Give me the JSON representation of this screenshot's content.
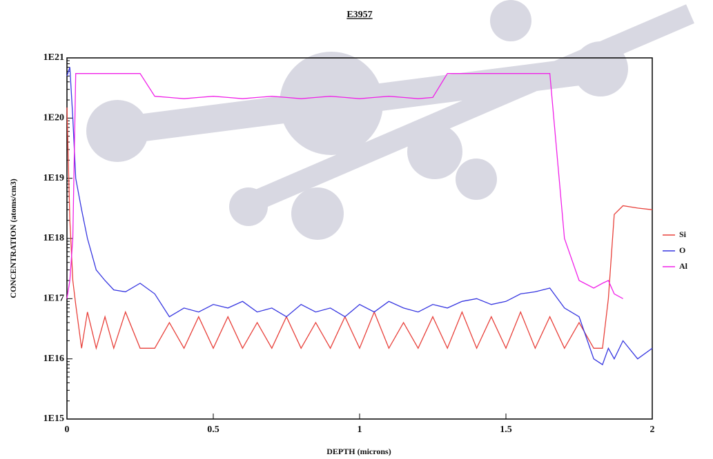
{
  "chart_data": {
    "type": "line",
    "title": "E3957",
    "x_label": "DEPTH (microns)",
    "y_label": "CONCENTRATION (atoms/cm3)",
    "yscale": "log",
    "legend": "right",
    "x": [
      0,
      0.01,
      0.02,
      0.03,
      0.05,
      0.07,
      0.1,
      0.13,
      0.16,
      0.2,
      0.25,
      0.3,
      0.35,
      0.4,
      0.45,
      0.5,
      0.55,
      0.6,
      0.65,
      0.7,
      0.75,
      0.8,
      0.85,
      0.9,
      0.95,
      1.0,
      1.05,
      1.1,
      1.15,
      1.2,
      1.25,
      1.3,
      1.35,
      1.4,
      1.45,
      1.5,
      1.55,
      1.6,
      1.65,
      1.7,
      1.75,
      1.8,
      1.83,
      1.85,
      1.87,
      1.9,
      1.95,
      2.0
    ],
    "series": [
      {
        "name": "Si",
        "color": "#e8403a",
        "values": [
          1.5e+20,
          2e+18,
          2e+17,
          8e+16,
          1.5e+16,
          6e+16,
          1.5e+16,
          5e+16,
          1.5e+16,
          6e+16,
          1.5e+16,
          1.5e+16,
          4e+16,
          1.5e+16,
          5e+16,
          1.5e+16,
          5e+16,
          1.5e+16,
          4e+16,
          1.5e+16,
          5e+16,
          1.5e+16,
          4e+16,
          1.5e+16,
          5e+16,
          1.5e+16,
          6e+16,
          1.5e+16,
          4e+16,
          1.5e+16,
          5e+16,
          1.5e+16,
          6e+16,
          1.5e+16,
          5e+16,
          1.5e+16,
          6e+16,
          1.5e+16,
          5e+16,
          1.5e+16,
          4e+16,
          1.5e+16,
          1.5e+16,
          1e+17,
          2.5e+18,
          3.5e+18,
          3.2e+18,
          3e+18
        ]
      },
      {
        "name": "O",
        "color": "#3535e0",
        "values": [
          5e+20,
          7e+20,
          1e+20,
          1e+19,
          3e+18,
          1e+18,
          3e+17,
          2e+17,
          1.4e+17,
          1.3e+17,
          1.8e+17,
          1.2e+17,
          5e+16,
          7e+16,
          6e+16,
          8e+16,
          7e+16,
          9e+16,
          6e+16,
          7e+16,
          5e+16,
          8e+16,
          6e+16,
          7e+16,
          5e+16,
          8e+16,
          6e+16,
          9e+16,
          7e+16,
          6e+16,
          8e+16,
          7e+16,
          9e+16,
          1e+17,
          8e+16,
          9e+16,
          1.2e+17,
          1.3e+17,
          1.5e+17,
          7e+16,
          5e+16,
          1e+16,
          8000000000000000.0,
          1.5e+16,
          1e+16,
          2e+16,
          1e+16,
          1.5e+16
        ]
      },
      {
        "name": "Al",
        "color": "#f020e8",
        "values": [
          1e+17,
          2e+17,
          1e+18,
          5.5e+20,
          5.5e+20,
          5.5e+20,
          5.5e+20,
          5.5e+20,
          5.5e+20,
          5.5e+20,
          5.5e+20,
          2.3e+20,
          2.2e+20,
          2.1e+20,
          2.2e+20,
          2.3e+20,
          2.2e+20,
          2.1e+20,
          2.2e+20,
          2.3e+20,
          2.2e+20,
          2.1e+20,
          2.2e+20,
          2.3e+20,
          2.2e+20,
          2.1e+20,
          2.2e+20,
          2.3e+20,
          2.2e+20,
          2.1e+20,
          2.2e+20,
          5.5e+20,
          5.5e+20,
          5.5e+20,
          5.5e+20,
          5.5e+20,
          5.5e+20,
          5.5e+20,
          5.5e+20,
          1e+18,
          2e+17,
          1.5e+17,
          1.8e+17,
          2e+17,
          1.2e+17,
          1e+17,
          null,
          null
        ]
      }
    ],
    "xlim": [
      0,
      2
    ],
    "xticks": [
      0,
      0.5,
      1,
      1.5,
      2
    ],
    "ylim": [
      1000000000000000.0,
      1e+21
    ],
    "yticks": [
      {
        "value": 1000000000000000.0,
        "label": "1E15"
      },
      {
        "value": 1e+16,
        "label": "1E16"
      },
      {
        "value": 1e+17,
        "label": "1E17"
      },
      {
        "value": 1e+18,
        "label": "1E18"
      },
      {
        "value": 1e+19,
        "label": "1E19"
      },
      {
        "value": 1e+20,
        "label": "1E20"
      },
      {
        "value": 1e+21,
        "label": "1E21"
      }
    ]
  }
}
